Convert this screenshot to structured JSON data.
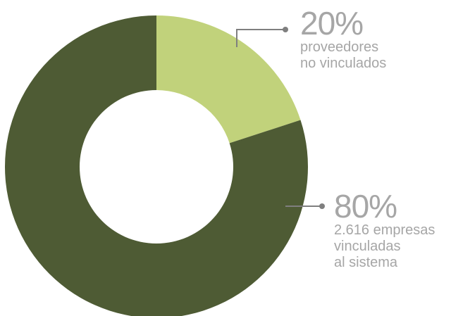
{
  "chart_data": {
    "type": "pie",
    "donut": true,
    "slices": [
      {
        "value": 20,
        "label": "20%",
        "description": [
          "proveedores",
          "no vinculados"
        ],
        "color": "#c1d27b"
      },
      {
        "value": 80,
        "label": "80%",
        "description": [
          "2.616 empresas",
          "vinculadas",
          "al sistema"
        ],
        "color": "#4e5b34"
      }
    ],
    "leader_color": "#7f7f7f",
    "text_color": "#a6a6a6"
  }
}
